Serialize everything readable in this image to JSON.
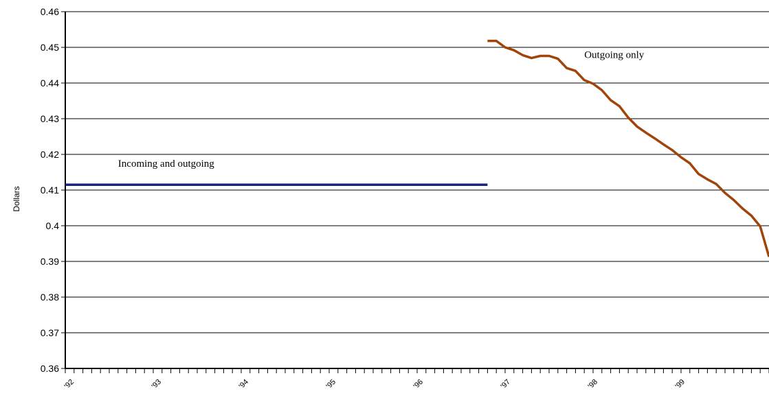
{
  "chart_data": {
    "type": "line",
    "title": "",
    "xlabel": "",
    "ylabel": "Dollars",
    "ylim": [
      0.36,
      0.46
    ],
    "yticks": [
      "0.46",
      "0.45",
      "0.44",
      "0.43",
      "0.42",
      "0.41",
      "0.4",
      "0.39",
      "0.38",
      "0.37",
      "0.36"
    ],
    "xlim": [
      0,
      80
    ],
    "xtick_labels": [
      "'92",
      "'93",
      "'94",
      "'95",
      "'96",
      "'97",
      "'98",
      "'99"
    ],
    "grid": true,
    "series": [
      {
        "name": "Incoming and outgoing",
        "color": "#1a237e",
        "x": [
          0,
          48
        ],
        "y": [
          0.4115,
          0.4115
        ]
      },
      {
        "name": "Outgoing only",
        "color": "#a0440a",
        "x": [
          48,
          49,
          50,
          51,
          52,
          53,
          54,
          55,
          56,
          57,
          58,
          59,
          60,
          61,
          62,
          63,
          64,
          65,
          66,
          67,
          68,
          69,
          70,
          71,
          72,
          73,
          74,
          75,
          76,
          77,
          78,
          79,
          80
        ],
        "y": [
          0.4518,
          0.4518,
          0.45,
          0.4492,
          0.4478,
          0.447,
          0.4476,
          0.4476,
          0.4468,
          0.4442,
          0.4434,
          0.4408,
          0.4398,
          0.438,
          0.4352,
          0.4335,
          0.4303,
          0.4278,
          0.4261,
          0.4245,
          0.4228,
          0.4212,
          0.4192,
          0.4175,
          0.4145,
          0.413,
          0.4117,
          0.4092,
          0.4072,
          0.4048,
          0.4028,
          0.3998,
          0.3913
        ]
      }
    ]
  },
  "annotations": [
    {
      "text": "Incoming and outgoing",
      "x": 6,
      "y": 0.4165
    },
    {
      "text": "Outgoing only",
      "x": 59,
      "y": 0.447
    }
  ]
}
